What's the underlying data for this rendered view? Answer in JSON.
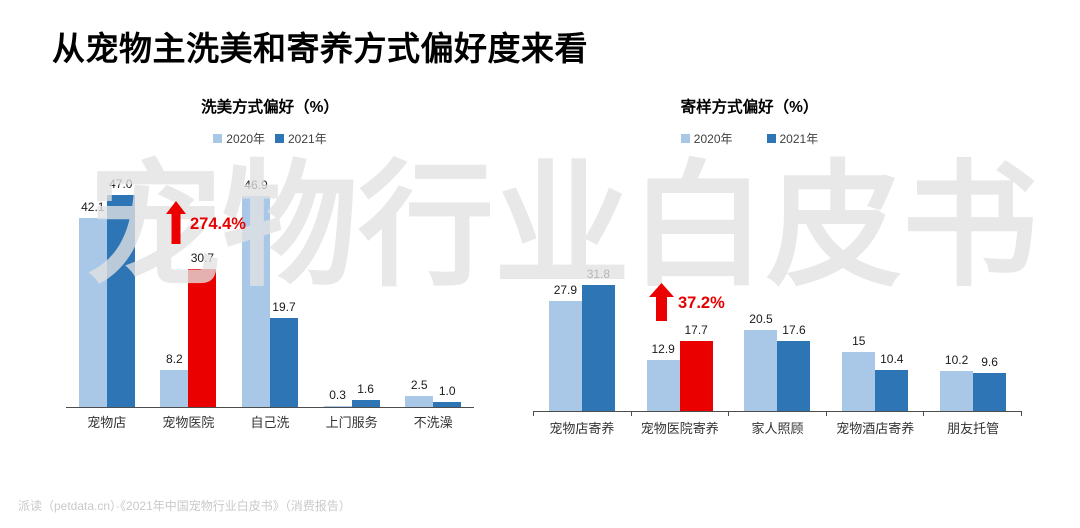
{
  "page": {
    "title": "从宠物主洗美和寄养方式偏好度来看",
    "watermark": "宠物行业白皮书",
    "footer": "派读（petdata.cn）·《2021年中国宠物行业白皮书》（消费报告）"
  },
  "colors": {
    "series_2020": "#A9C8E8",
    "series_2021": "#2E75B6",
    "highlight_red": "#EB0000",
    "axis": "#4d4d4d"
  },
  "chart_data": [
    {
      "type": "bar",
      "title": "洗美方式偏好（%）",
      "categories": [
        "宠物店",
        "宠物医院",
        "自己洗",
        "上门服务",
        "不洗澡"
      ],
      "series": [
        {
          "name": "2020年",
          "color": "#A9C8E8",
          "values": [
            42.1,
            8.2,
            46.9,
            0.3,
            2.5
          ],
          "labels": [
            "42.1",
            "8.2",
            "46.9",
            "0.3",
            "2.5"
          ]
        },
        {
          "name": "2021年",
          "color": "#2E75B6",
          "values": [
            47.0,
            30.7,
            19.7,
            1.6,
            1.0
          ],
          "labels": [
            "47.0",
            "30.7",
            "19.7",
            "1.6",
            "1.0"
          ]
        }
      ],
      "highlight": {
        "series": 1,
        "category": 1,
        "color": "#EB0000"
      },
      "annotation": "274.4%",
      "xlabel": "",
      "ylabel": "",
      "ylim": [
        0,
        50
      ],
      "grid": false,
      "legend_position": "top",
      "value_labels": true
    },
    {
      "type": "bar",
      "title": "寄样方式偏好（%）",
      "categories": [
        "宠物店寄养",
        "宠物医院寄养",
        "家人照顾",
        "宠物酒店寄养",
        "朋友托管"
      ],
      "series": [
        {
          "name": "2020年",
          "color": "#A9C8E8",
          "values": [
            27.9,
            12.9,
            20.5,
            15,
            10.2
          ],
          "labels": [
            "27.9",
            "12.9",
            "20.5",
            "15",
            "10.2"
          ]
        },
        {
          "name": "2021年",
          "color": "#2E75B6",
          "values": [
            31.8,
            17.7,
            17.6,
            10.4,
            9.6
          ],
          "labels": [
            "31.8",
            "17.7",
            "17.6",
            "10.4",
            "9.6"
          ]
        }
      ],
      "highlight": {
        "series": 1,
        "category": 1,
        "color": "#EB0000"
      },
      "annotation": "37.2%",
      "xlabel": "",
      "ylabel": "",
      "ylim": [
        0,
        35
      ],
      "grid": false,
      "legend_position": "top",
      "value_labels": true
    }
  ]
}
